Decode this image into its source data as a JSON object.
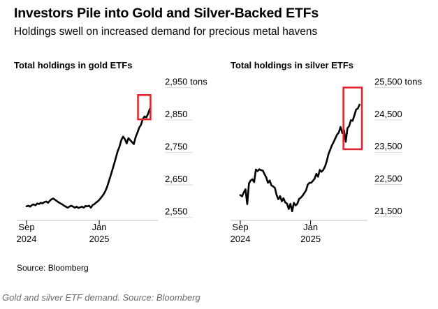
{
  "title": "Investors Pile into Gold and Silver-Backed ETFs",
  "subtitle": "Holdings swell on increased demand for precious metal havens",
  "source": "Source: Bloomberg",
  "caption": "Gold and silver ETF demand. Source: Bloomberg",
  "colors": {
    "line": "#000000",
    "highlight": "#e8202a",
    "grid": "#d9d9d9"
  },
  "chart_data": [
    {
      "type": "line",
      "title": "Total holdings in gold ETFs",
      "unit": "tons",
      "ylim": [
        2530,
        2960
      ],
      "yticks": [
        2550,
        2650,
        2750,
        2850,
        2950
      ],
      "ytick_labels": [
        "2,550",
        "2,650",
        "2,750",
        "2,850",
        "2,950 tons"
      ],
      "xlim": [
        "2024-09-01",
        "2025-03-31"
      ],
      "xticks": [
        "2024-09-01",
        "2025-01-01"
      ],
      "xtick_labels": [
        [
          "Sep",
          "2024"
        ],
        [
          "Jan",
          "2025"
        ]
      ],
      "grid": "horizontal",
      "highlight": {
        "x": [
          "2025-03-07",
          "2025-03-28"
        ],
        "y": [
          2835,
          2910
        ]
      },
      "series": [
        {
          "x": [
            "2024-09-01",
            "2024-09-04",
            "2024-09-07",
            "2024-09-10",
            "2024-09-13",
            "2024-09-16",
            "2024-09-19",
            "2024-09-22",
            "2024-09-25",
            "2024-09-28",
            "2024-10-01",
            "2024-10-04",
            "2024-10-07",
            "2024-10-10",
            "2024-10-13",
            "2024-10-16",
            "2024-10-19",
            "2024-10-22",
            "2024-10-25",
            "2024-10-28",
            "2024-10-31",
            "2024-11-03",
            "2024-11-06",
            "2024-11-09",
            "2024-11-12",
            "2024-11-15",
            "2024-11-18",
            "2024-11-21",
            "2024-11-24",
            "2024-11-27",
            "2024-11-30",
            "2024-12-03",
            "2024-12-06",
            "2024-12-09",
            "2024-12-12",
            "2024-12-15",
            "2024-12-18",
            "2024-12-21",
            "2024-12-24",
            "2024-12-27",
            "2024-12-30",
            "2025-01-02",
            "2025-01-05",
            "2025-01-08",
            "2025-01-11",
            "2025-01-14",
            "2025-01-17",
            "2025-01-20",
            "2025-01-23",
            "2025-01-26",
            "2025-01-29",
            "2025-02-01",
            "2025-02-04",
            "2025-02-07",
            "2025-02-10",
            "2025-02-13",
            "2025-02-16",
            "2025-02-19",
            "2025-02-22",
            "2025-02-25",
            "2025-02-28",
            "2025-03-03",
            "2025-03-06",
            "2025-03-09",
            "2025-03-12",
            "2025-03-15",
            "2025-03-18",
            "2025-03-21",
            "2025-03-24",
            "2025-03-27"
          ],
          "values": [
            2567,
            2569,
            2566,
            2571,
            2573,
            2570,
            2576,
            2574,
            2578,
            2576,
            2580,
            2582,
            2578,
            2584,
            2589,
            2591,
            2587,
            2583,
            2579,
            2576,
            2573,
            2569,
            2566,
            2563,
            2566,
            2569,
            2566,
            2563,
            2566,
            2562,
            2564,
            2566,
            2563,
            2568,
            2567,
            2569,
            2563,
            2571,
            2574,
            2579,
            2583,
            2589,
            2596,
            2603,
            2613,
            2626,
            2643,
            2661,
            2679,
            2698,
            2718,
            2737,
            2751,
            2771,
            2782,
            2774,
            2761,
            2777,
            2771,
            2765,
            2759,
            2780,
            2794,
            2809,
            2818,
            2836,
            2844,
            2841,
            2852,
            2868
          ]
        }
      ]
    },
    {
      "type": "line",
      "title": "Total holdings in silver ETFs",
      "unit": "tons",
      "ylim": [
        21280,
        25600
      ],
      "yticks": [
        21500,
        22500,
        23500,
        24500,
        25500
      ],
      "ytick_labels": [
        "21,500",
        "22,500",
        "23,500",
        "24,500",
        "25,500 tons"
      ],
      "xlim": [
        "2024-09-01",
        "2025-03-31"
      ],
      "xticks": [
        "2024-09-01",
        "2025-01-01"
      ],
      "xtick_labels": [
        [
          "Sep",
          "2024"
        ],
        [
          "Jan",
          "2025"
        ]
      ],
      "grid": "horizontal",
      "highlight": {
        "x": [
          "2025-02-27",
          "2025-03-31"
        ],
        "y": [
          23420,
          25330
        ]
      },
      "series": [
        {
          "x": [
            "2024-09-01",
            "2024-09-04",
            "2024-09-07",
            "2024-09-10",
            "2024-09-13",
            "2024-09-16",
            "2024-09-19",
            "2024-09-22",
            "2024-09-25",
            "2024-09-28",
            "2024-10-01",
            "2024-10-04",
            "2024-10-07",
            "2024-10-10",
            "2024-10-13",
            "2024-10-16",
            "2024-10-19",
            "2024-10-22",
            "2024-10-25",
            "2024-10-28",
            "2024-10-31",
            "2024-11-03",
            "2024-11-06",
            "2024-11-09",
            "2024-11-12",
            "2024-11-15",
            "2024-11-18",
            "2024-11-21",
            "2024-11-24",
            "2024-11-27",
            "2024-11-30",
            "2024-12-03",
            "2024-12-06",
            "2024-12-09",
            "2024-12-12",
            "2024-12-15",
            "2024-12-18",
            "2024-12-21",
            "2024-12-24",
            "2024-12-27",
            "2024-12-30",
            "2025-01-02",
            "2025-01-05",
            "2025-01-08",
            "2025-01-11",
            "2025-01-14",
            "2025-01-17",
            "2025-01-20",
            "2025-01-23",
            "2025-01-26",
            "2025-01-29",
            "2025-02-01",
            "2025-02-04",
            "2025-02-07",
            "2025-02-10",
            "2025-02-13",
            "2025-02-16",
            "2025-02-19",
            "2025-02-22",
            "2025-02-25",
            "2025-02-28",
            "2025-03-03",
            "2025-03-06",
            "2025-03-09",
            "2025-03-12",
            "2025-03-15",
            "2025-03-18",
            "2025-03-21",
            "2025-03-24",
            "2025-03-27"
          ],
          "values": [
            22000,
            21960,
            22080,
            22180,
            21720,
            22360,
            22450,
            22490,
            22400,
            22790,
            22740,
            22800,
            22770,
            22760,
            22650,
            22550,
            22380,
            22450,
            22300,
            22270,
            22220,
            22000,
            21870,
            21970,
            21810,
            21900,
            21770,
            21740,
            21570,
            21730,
            21500,
            21760,
            21680,
            21730,
            21880,
            21920,
            21980,
            22060,
            22140,
            22320,
            22380,
            22380,
            22440,
            22510,
            22660,
            22570,
            22780,
            22720,
            22780,
            22880,
            23050,
            23270,
            23400,
            23540,
            23640,
            23760,
            23870,
            23940,
            24110,
            23920,
            24010,
            23650,
            24070,
            24140,
            24320,
            24300,
            24470,
            24650,
            24680,
            24800
          ]
        }
      ]
    }
  ]
}
